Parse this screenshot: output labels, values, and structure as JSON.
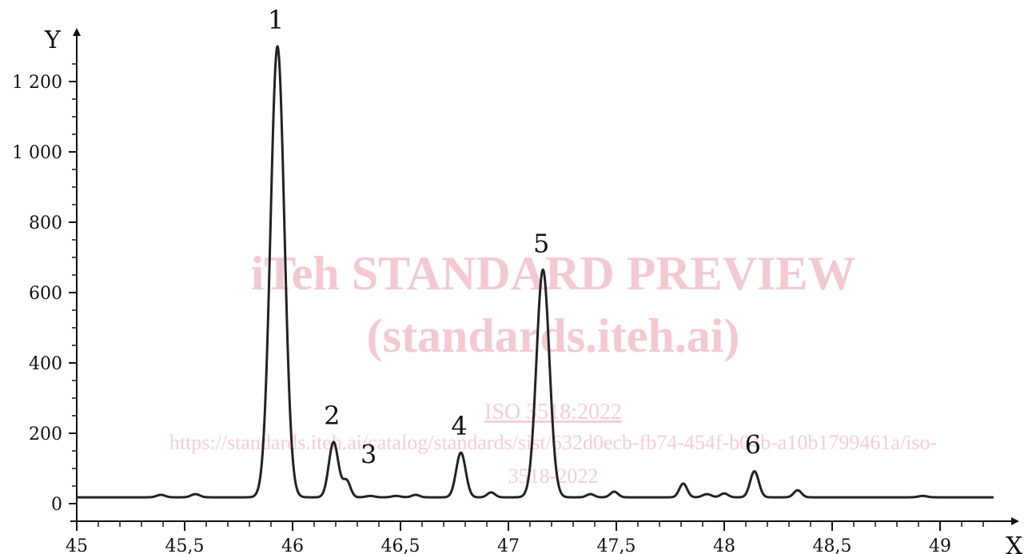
{
  "chart_data": {
    "type": "line",
    "title": "",
    "xlabel": "X",
    "ylabel": "Y",
    "xlim": [
      45,
      49.3
    ],
    "ylim": [
      -50,
      1320
    ],
    "x_ticks": [
      45,
      45.5,
      46,
      46.5,
      47,
      47.5,
      48,
      48.5,
      49
    ],
    "x_tick_labels": [
      "45",
      "45,5",
      "46",
      "46,5",
      "47",
      "47,5",
      "48",
      "48,5",
      "49"
    ],
    "y_ticks": [
      0,
      200,
      400,
      600,
      800,
      1000,
      1200
    ],
    "y_tick_labels": [
      "0",
      "200",
      "400",
      "600",
      "800",
      "1 000",
      "1 200"
    ],
    "grid": false,
    "baseline": 18,
    "series": [
      {
        "color": "#222222",
        "peaks": [
          {
            "x": 45.39,
            "y": 25,
            "width": 0.02
          },
          {
            "x": 45.55,
            "y": 27,
            "width": 0.02
          },
          {
            "x": 45.93,
            "y": 1300,
            "width": 0.032
          },
          {
            "x": 46.19,
            "y": 175,
            "width": 0.022
          },
          {
            "x": 46.25,
            "y": 65,
            "width": 0.018
          },
          {
            "x": 46.36,
            "y": 22,
            "width": 0.02
          },
          {
            "x": 46.48,
            "y": 22,
            "width": 0.02
          },
          {
            "x": 46.57,
            "y": 25,
            "width": 0.018
          },
          {
            "x": 46.78,
            "y": 145,
            "width": 0.022
          },
          {
            "x": 46.92,
            "y": 32,
            "width": 0.018
          },
          {
            "x": 47.16,
            "y": 665,
            "width": 0.03
          },
          {
            "x": 47.38,
            "y": 27,
            "width": 0.018
          },
          {
            "x": 47.49,
            "y": 34,
            "width": 0.018
          },
          {
            "x": 47.81,
            "y": 57,
            "width": 0.018
          },
          {
            "x": 47.92,
            "y": 27,
            "width": 0.02
          },
          {
            "x": 48.0,
            "y": 29,
            "width": 0.018
          },
          {
            "x": 48.14,
            "y": 92,
            "width": 0.02
          },
          {
            "x": 48.34,
            "y": 38,
            "width": 0.018
          },
          {
            "x": 48.92,
            "y": 22,
            "width": 0.02
          }
        ]
      }
    ],
    "annotations": [
      {
        "text": "1",
        "x": 45.93,
        "y": 1300
      },
      {
        "text": "2",
        "x": 46.19,
        "y": 175
      },
      {
        "text": "3",
        "x": 46.36,
        "y": 65
      },
      {
        "text": "4",
        "x": 46.78,
        "y": 145
      },
      {
        "text": "5",
        "x": 47.16,
        "y": 665
      },
      {
        "text": "6",
        "x": 48.14,
        "y": 92
      }
    ]
  },
  "watermark": {
    "line1": "iTeh STANDARD PREVIEW",
    "line2": "(standards.iteh.ai)",
    "line3": "ISO 3518:2022",
    "line4": "https://standards.iteh.ai/catalog/standards/sist/632d0ecb-fb74-454f-b04b-a10b1799461a/iso-",
    "line5": "3518-2022"
  }
}
